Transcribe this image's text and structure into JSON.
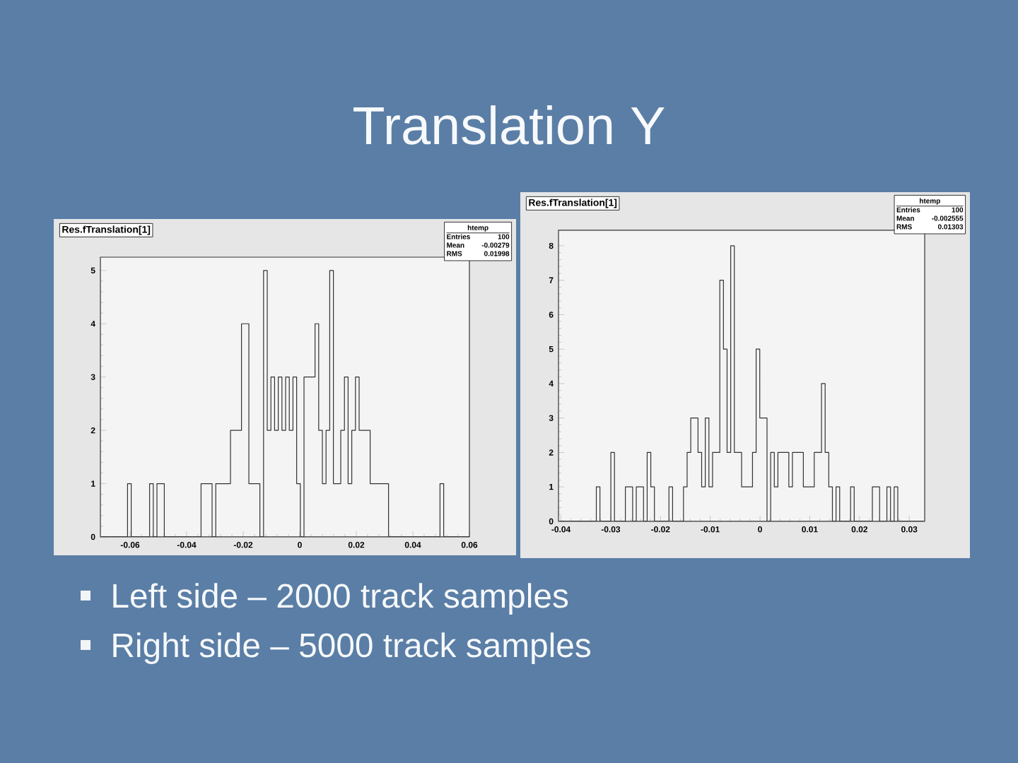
{
  "chart_data": [
    {
      "type": "histogram",
      "title": "Res.fTranslation[1]",
      "color": "#333333",
      "xlim": [
        -0.0705,
        0.06
      ],
      "ylim": [
        0,
        5.25
      ],
      "xticks": [
        -0.06,
        -0.04,
        -0.02,
        0,
        0.02,
        0.04,
        0.06
      ],
      "yticks": [
        0,
        1,
        2,
        3,
        4,
        5
      ],
      "bins": [
        -0.07,
        -0.0609,
        -0.0596,
        -0.0531,
        -0.0518,
        -0.0505,
        -0.0479,
        -0.0349,
        -0.031,
        -0.0297,
        -0.0245,
        -0.0206,
        -0.018,
        -0.0141,
        -0.0128,
        -0.0115,
        -0.0102,
        -0.0089,
        -0.0076,
        -0.0063,
        -0.005,
        -0.0037,
        -0.0024,
        -0.0011,
        0.0002,
        0.0015,
        0.0054,
        0.0067,
        0.008,
        0.0093,
        0.0106,
        0.0119,
        0.0145,
        0.0158,
        0.0171,
        0.0184,
        0.0197,
        0.021,
        0.0249,
        0.0314,
        0.0496,
        0.0509,
        0.06
      ],
      "values": [
        0,
        1,
        0,
        1,
        0,
        1,
        0,
        1,
        0,
        1,
        2,
        4,
        1,
        0,
        5,
        2,
        3,
        2,
        3,
        2,
        3,
        2,
        3,
        1,
        0,
        3,
        4,
        2,
        1,
        2,
        5,
        1,
        2,
        3,
        1,
        2,
        3,
        2,
        1,
        0,
        1,
        0
      ],
      "annotations": [
        "htemp",
        "Entries",
        "100",
        "Mean",
        "-0.00279",
        "RMS",
        "0.01998",
        "Left side – 2000 track samples",
        "Translation Y"
      ]
    },
    {
      "type": "histogram",
      "title": "Res.fTranslation[1]",
      "color": "#333333",
      "xlim": [
        -0.0405,
        0.0331
      ],
      "ylim": [
        0,
        8.45
      ],
      "xticks": [
        -0.04,
        -0.03,
        -0.02,
        -0.01,
        0,
        0.01,
        0.02,
        0.03
      ],
      "yticks": [
        0,
        1,
        2,
        3,
        4,
        5,
        6,
        7,
        8
      ],
      "bins": [
        -0.0402,
        -0.0329,
        -0.03217,
        -0.02998,
        -0.02925,
        -0.02706,
        -0.0256,
        -0.02487,
        -0.02341,
        -0.02268,
        -0.02195,
        -0.02122,
        -0.0183,
        -0.01757,
        -0.01538,
        -0.01465,
        -0.01392,
        -0.01246,
        -0.01173,
        -0.011,
        -0.01027,
        -0.00954,
        -0.00808,
        -0.00735,
        -0.00662,
        -0.00589,
        -0.00516,
        -0.0037,
        -0.00151,
        -0.00078,
        -5e-05,
        0.00141,
        0.00214,
        0.00287,
        0.0036,
        0.00579,
        0.00652,
        0.00871,
        0.0109,
        0.01236,
        0.01309,
        0.01382,
        0.01455,
        0.01528,
        0.01601,
        0.0182,
        0.01893,
        0.02258,
        0.02404,
        0.0255,
        0.02623,
        0.02696,
        0.02769,
        0.0328
      ],
      "values": [
        0,
        1,
        0,
        2,
        0,
        1,
        0,
        1,
        0,
        2,
        1,
        0,
        1,
        0,
        1,
        2,
        3,
        2,
        1,
        3,
        1,
        2,
        7,
        5,
        2,
        8,
        2,
        1,
        2,
        5,
        3,
        0,
        2,
        1,
        2,
        1,
        2,
        1,
        2,
        4,
        2,
        1,
        0,
        1,
        0,
        1,
        0,
        1,
        0,
        1,
        0,
        1,
        0
      ],
      "annotations": [
        "htemp",
        "Entries",
        "100",
        "Mean",
        "-0.002555",
        "RMS",
        "0.01303",
        "Right side – 5000 track samples"
      ]
    }
  ]
}
